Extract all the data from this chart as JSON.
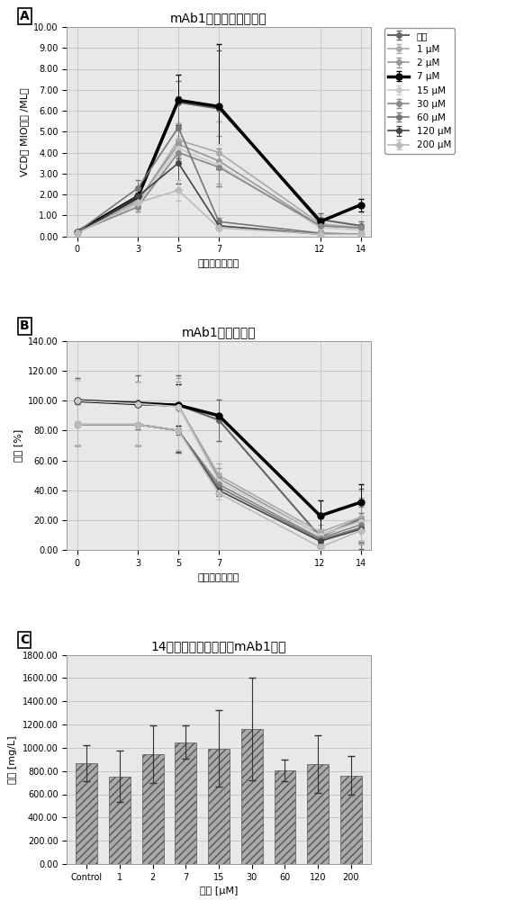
{
  "panel_A": {
    "title": "mAb1细胞的活细胞密度",
    "xlabel": "经过时间（天）",
    "ylabel": "VCD［ MIO细胞 /ML］",
    "xlim": [
      -0.5,
      14.5
    ],
    "ylim": [
      0,
      10.0
    ],
    "yticks": [
      0.0,
      1.0,
      2.0,
      3.0,
      4.0,
      5.0,
      6.0,
      7.0,
      8.0,
      9.0,
      10.0
    ],
    "xticks": [
      0,
      3,
      5,
      7,
      12,
      14
    ],
    "time_points": [
      0,
      3,
      5,
      7,
      12,
      14
    ],
    "series": [
      {
        "label": "对照",
        "color": "#666666",
        "linewidth": 1.5,
        "marker": "o",
        "markersize": 4,
        "values": [
          0.2,
          1.8,
          6.4,
          6.1,
          0.8,
          0.5
        ],
        "errors": [
          0.05,
          0.3,
          1.0,
          2.8,
          0.3,
          0.2
        ]
      },
      {
        "label": "1 μM",
        "color": "#aaaaaa",
        "linewidth": 1.2,
        "marker": "o",
        "markersize": 4,
        "values": [
          0.2,
          1.6,
          4.6,
          4.0,
          0.6,
          0.4
        ],
        "errors": [
          0.05,
          0.2,
          0.8,
          1.5,
          0.2,
          0.1
        ]
      },
      {
        "label": "2 μM",
        "color": "#999999",
        "linewidth": 1.2,
        "marker": "o",
        "markersize": 4,
        "values": [
          0.2,
          1.7,
          4.4,
          3.6,
          0.5,
          0.4
        ],
        "errors": [
          0.05,
          0.2,
          0.7,
          1.2,
          0.2,
          0.1
        ]
      },
      {
        "label": "7 μM",
        "color": "#000000",
        "linewidth": 2.5,
        "marker": "o",
        "markersize": 5,
        "values": [
          0.2,
          1.9,
          6.5,
          6.2,
          0.7,
          1.5
        ],
        "errors": [
          0.05,
          0.3,
          1.2,
          3.0,
          0.2,
          0.3
        ]
      },
      {
        "label": "15 μM",
        "color": "#cccccc",
        "linewidth": 1.2,
        "marker": "o",
        "markersize": 4,
        "values": [
          0.2,
          1.5,
          4.2,
          3.4,
          0.4,
          0.3
        ],
        "errors": [
          0.05,
          0.2,
          0.6,
          1.0,
          0.1,
          0.1
        ]
      },
      {
        "label": "30 μM",
        "color": "#888888",
        "linewidth": 1.2,
        "marker": "o",
        "markersize": 4,
        "values": [
          0.2,
          1.4,
          4.0,
          3.3,
          0.5,
          0.4
        ],
        "errors": [
          0.05,
          0.2,
          0.6,
          0.9,
          0.2,
          0.1
        ]
      },
      {
        "label": "60 μM",
        "color": "#777777",
        "linewidth": 1.2,
        "marker": "o",
        "markersize": 4,
        "values": [
          0.2,
          2.3,
          5.2,
          0.7,
          0.15,
          0.1
        ],
        "errors": [
          0.05,
          0.4,
          1.5,
          0.2,
          0.05,
          0.05
        ]
      },
      {
        "label": "120 μM",
        "color": "#444444",
        "linewidth": 1.2,
        "marker": "o",
        "markersize": 4,
        "values": [
          0.15,
          1.9,
          3.5,
          0.5,
          0.1,
          0.1
        ],
        "errors": [
          0.05,
          0.3,
          1.0,
          0.15,
          0.05,
          0.05
        ]
      },
      {
        "label": "200 μM",
        "color": "#bbbbbb",
        "linewidth": 1.2,
        "marker": "D",
        "markersize": 4,
        "values": [
          0.15,
          1.6,
          2.2,
          0.4,
          0.1,
          0.1
        ],
        "errors": [
          0.05,
          0.3,
          0.5,
          0.12,
          0.05,
          0.05
        ]
      }
    ]
  },
  "panel_B": {
    "title": "mAb1细胞的活力",
    "xlabel": "经过时间（天）",
    "ylabel": "活力 [%]",
    "xlim": [
      -0.5,
      14.5
    ],
    "ylim": [
      0,
      140.0
    ],
    "yticks": [
      0.0,
      20.0,
      40.0,
      60.0,
      80.0,
      100.0,
      120.0,
      140.0
    ],
    "xticks": [
      0,
      3,
      5,
      7,
      12,
      14
    ],
    "time_points": [
      0,
      3,
      5,
      7,
      12,
      14
    ],
    "series": [
      {
        "label": "对照",
        "color": "#666666",
        "linewidth": 1.5,
        "marker": "o",
        "markersize": 4,
        "values": [
          100,
          99,
          97,
          87,
          9,
          21
        ],
        "errors": [
          15,
          18,
          20,
          14,
          5,
          20
        ]
      },
      {
        "label": "1 μM",
        "color": "#aaaaaa",
        "linewidth": 1.2,
        "marker": "o",
        "markersize": 4,
        "values": [
          100,
          98,
          97,
          50,
          12,
          22
        ],
        "errors": [
          14,
          15,
          18,
          8,
          5,
          18
        ]
      },
      {
        "label": "2 μM",
        "color": "#999999",
        "linewidth": 1.2,
        "marker": "o",
        "markersize": 4,
        "values": [
          100,
          98,
          96,
          48,
          10,
          20
        ],
        "errors": [
          14,
          15,
          17,
          7,
          4,
          15
        ]
      },
      {
        "label": "7 μM",
        "color": "#000000",
        "linewidth": 2.5,
        "marker": "o",
        "markersize": 5,
        "values": [
          100,
          98,
          97,
          90,
          23,
          32
        ],
        "errors": [
          0,
          0,
          14,
          0,
          10,
          12
        ]
      },
      {
        "label": "15 μM",
        "color": "#cccccc",
        "linewidth": 1.2,
        "marker": "o",
        "markersize": 4,
        "values": [
          100,
          98,
          96,
          46,
          10,
          19
        ],
        "errors": [
          14,
          14,
          16,
          6,
          4,
          14
        ]
      },
      {
        "label": "30 μM",
        "color": "#888888",
        "linewidth": 1.2,
        "marker": "o",
        "markersize": 4,
        "values": [
          84,
          84,
          80,
          44,
          8,
          17
        ],
        "errors": [
          14,
          14,
          15,
          6,
          3,
          12
        ]
      },
      {
        "label": "60 μM",
        "color": "#777777",
        "linewidth": 1.2,
        "marker": "o",
        "markersize": 4,
        "values": [
          84,
          84,
          80,
          42,
          7,
          15
        ],
        "errors": [
          14,
          14,
          15,
          5,
          3,
          10
        ]
      },
      {
        "label": "120 μM",
        "color": "#444444",
        "linewidth": 1.2,
        "marker": "o",
        "markersize": 4,
        "values": [
          84,
          84,
          80,
          40,
          6,
          14
        ],
        "errors": [
          14,
          14,
          14,
          4,
          2,
          8
        ]
      },
      {
        "label": "200 μM",
        "color": "#bbbbbb",
        "linewidth": 1.2,
        "marker": "D",
        "markersize": 4,
        "values": [
          84,
          84,
          80,
          38,
          2,
          13
        ],
        "errors": [
          14,
          14,
          13,
          4,
          2,
          7
        ]
      }
    ]
  },
  "panel_C": {
    "title": "14天补料分批培养后的mAb1滴度",
    "xlabel": "浓度 [μM]",
    "ylabel": "滴度 [mg/L]",
    "ylim": [
      0,
      1800.0
    ],
    "yticks": [
      0,
      200,
      400,
      600,
      800,
      1000,
      1200,
      1400,
      1600,
      1800
    ],
    "categories": [
      "Control",
      "1",
      "2",
      "7",
      "15",
      "30",
      "60",
      "120",
      "200"
    ],
    "values": [
      865,
      753,
      945,
      1047,
      993,
      1163,
      805,
      858,
      762
    ],
    "errors": [
      155,
      220,
      250,
      145,
      330,
      440,
      90,
      250,
      165
    ],
    "bar_color": "#aaaaaa",
    "bar_edgecolor": "#555555"
  },
  "bg_color": "#e8e8e8",
  "grid_color": "#bbbbbb",
  "font_size_title": 10,
  "font_size_label": 8,
  "font_size_tick": 7,
  "font_size_legend": 7.5
}
